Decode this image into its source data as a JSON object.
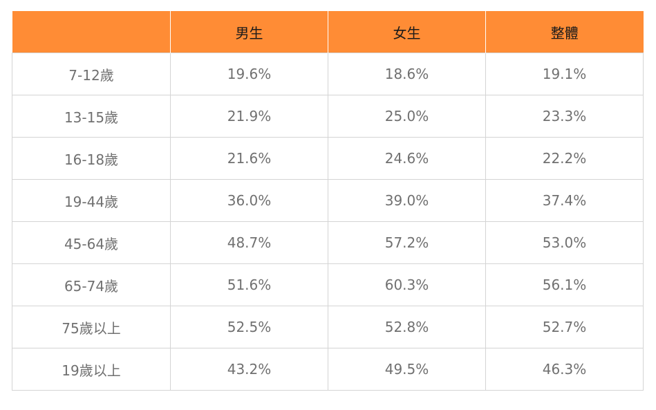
{
  "table": {
    "headers": [
      "",
      "男生",
      "女生",
      "整體"
    ],
    "rows": [
      [
        "7-12歲",
        "19.6%",
        "18.6%",
        "19.1%"
      ],
      [
        "13-15歲",
        "21.9%",
        "25.0%",
        "23.3%"
      ],
      [
        "16-18歲",
        "21.6%",
        "24.6%",
        "22.2%"
      ],
      [
        "19-44歲",
        "36.0%",
        "39.0%",
        "37.4%"
      ],
      [
        "45-64歲",
        "48.7%",
        "57.2%",
        "53.0%"
      ],
      [
        "65-74歲",
        "51.6%",
        "60.3%",
        "56.1%"
      ],
      [
        "75歲以上",
        "52.5%",
        "52.8%",
        "52.7%"
      ],
      [
        "19歲以上",
        "43.2%",
        "49.5%",
        "46.3%"
      ]
    ]
  },
  "colors": {
    "header_background": "#ff8c35",
    "header_text": "#1a1a1a",
    "cell_text": "#707070",
    "grid_line": "#d4d4d4"
  }
}
